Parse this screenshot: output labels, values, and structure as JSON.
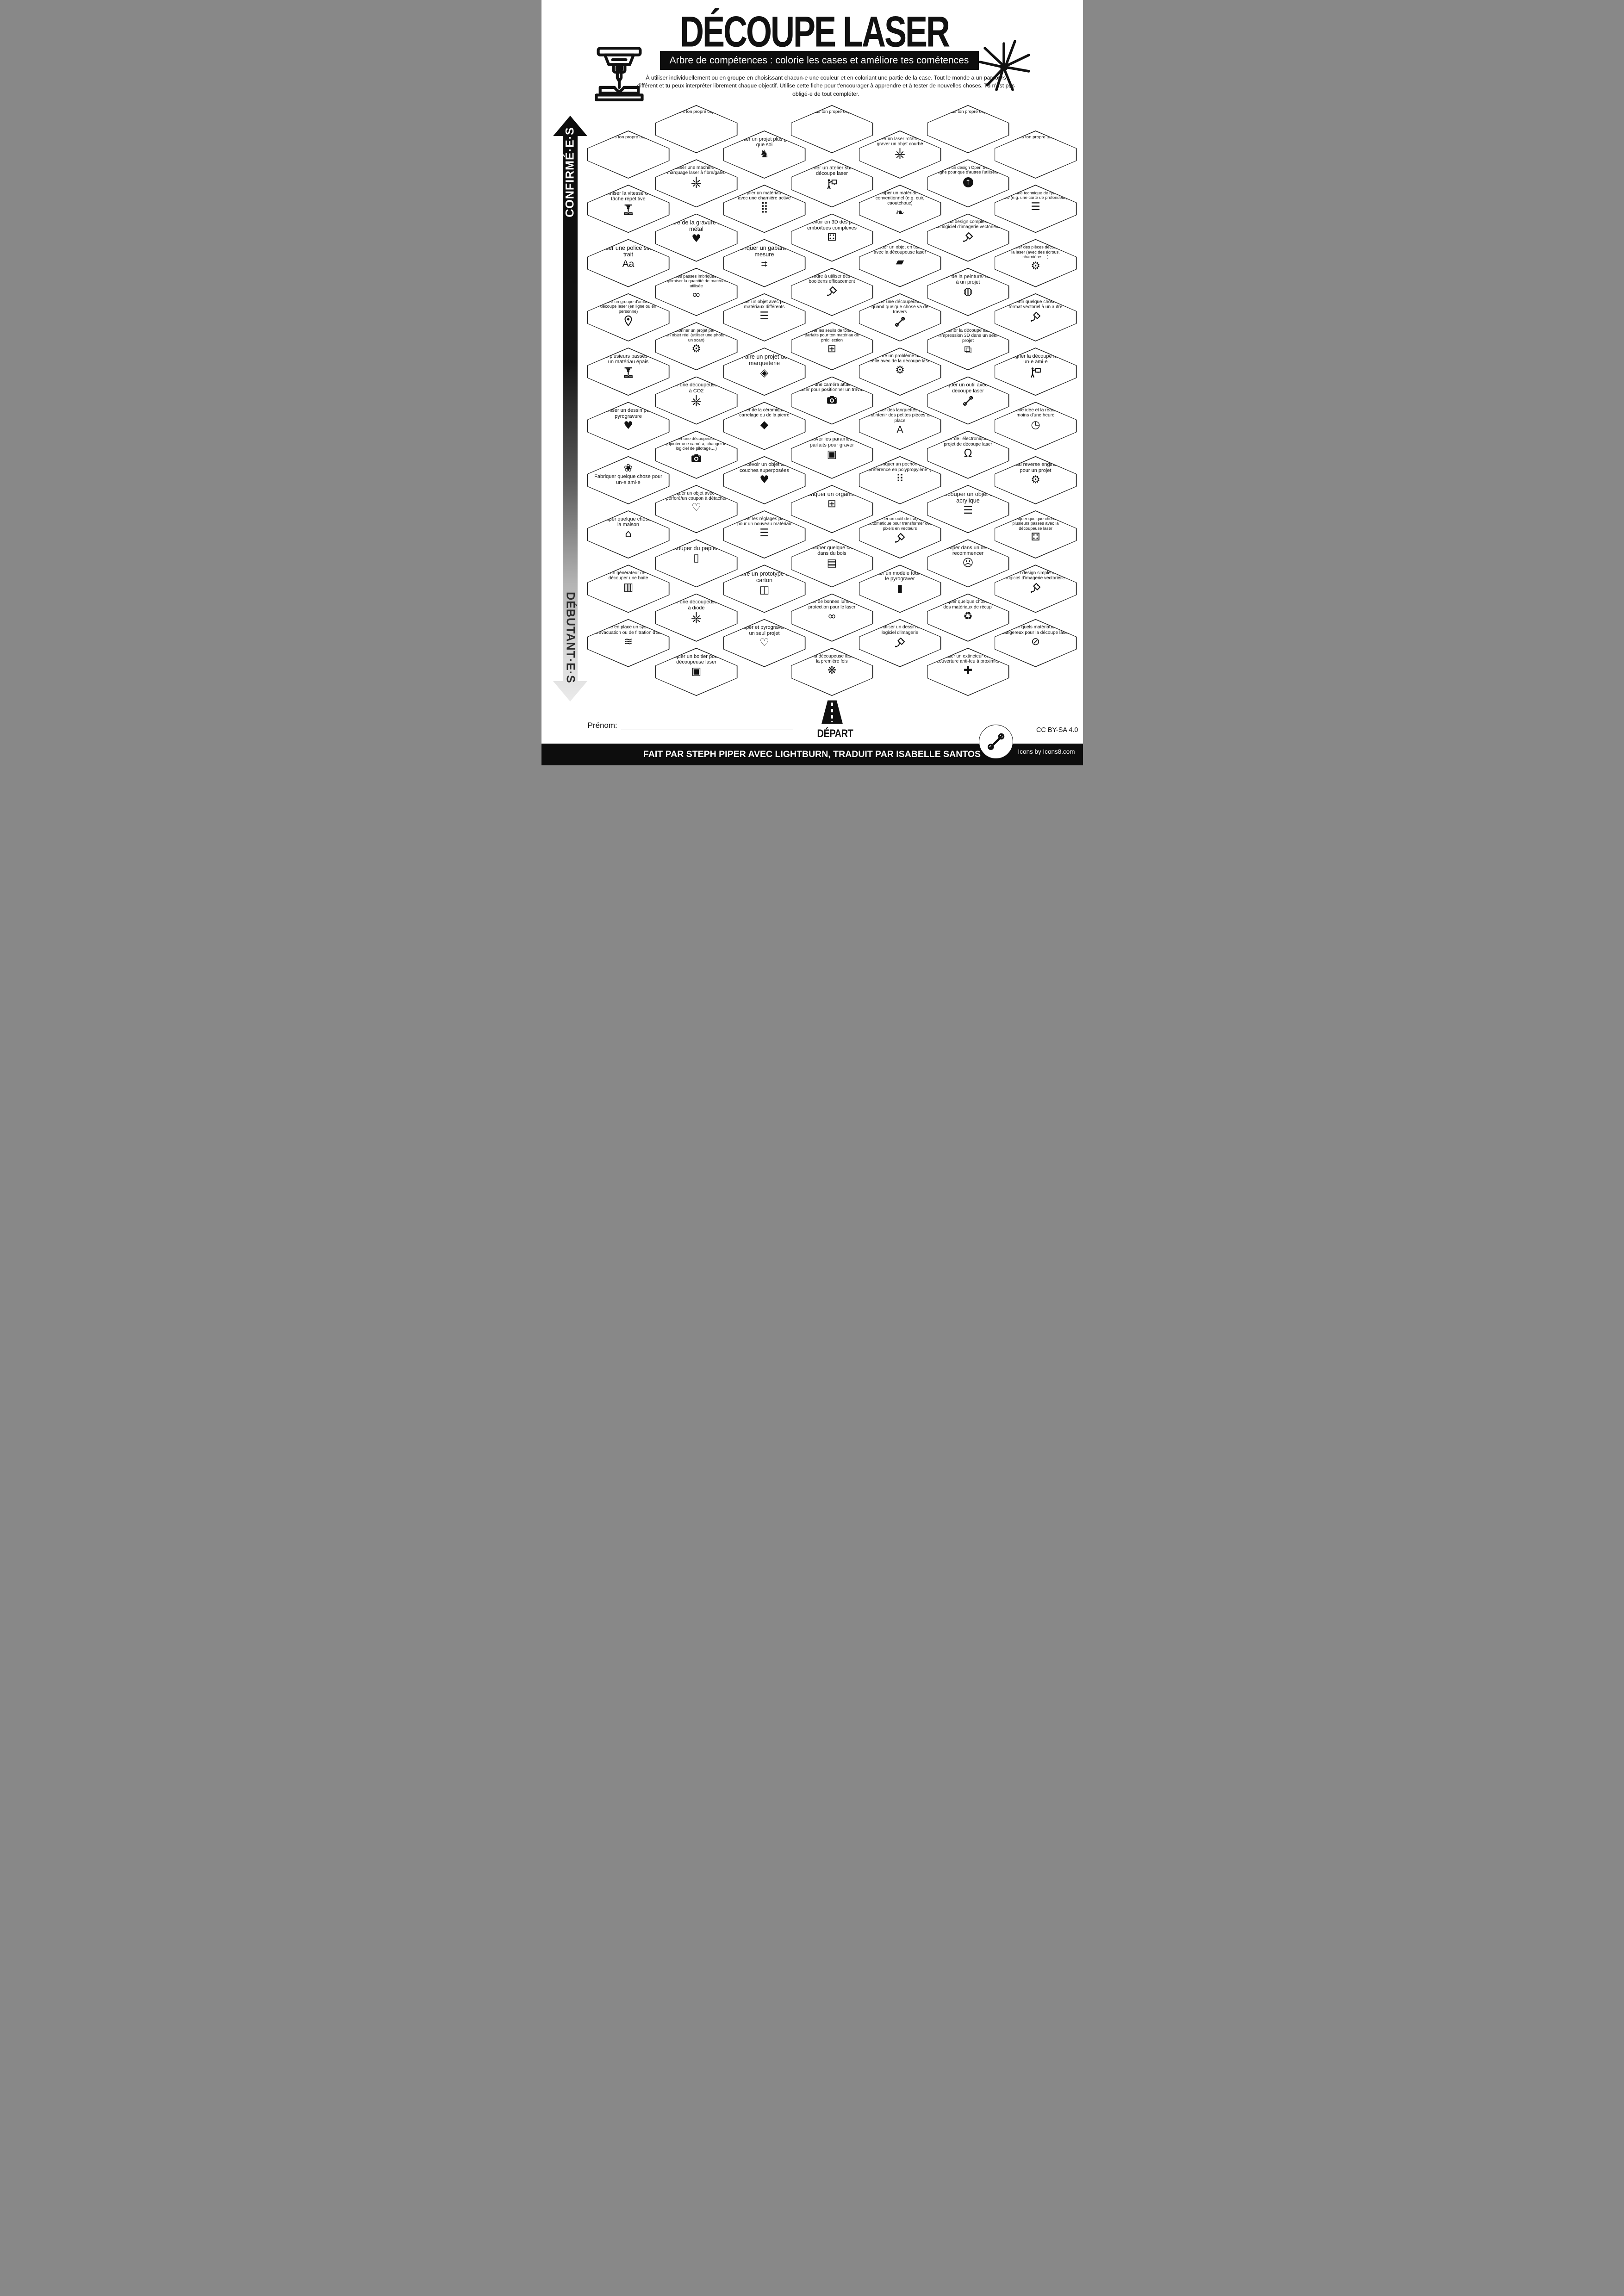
{
  "header": {
    "title": "DÉCOUPE LASER",
    "subtitle": "Arbre de compétences : colorie les cases et améliore tes cométences",
    "intro": "À utiliser individuellement ou en groupe en choisissant chacun·e une couleur et en coloriant une partie de la case. Tout le monde a un parcours différent et tu peux interpréter librement chaque objectif. Utilise cette fiche pour t'encourager à apprendre et à tester de nouvelles choses. Tu n'est pas obligé·e de tout compléter."
  },
  "axis": {
    "top": "CONFIRMÉ·E·S",
    "bottom": "DÉBUTANT·E·S"
  },
  "footer": {
    "start": "DÉPART",
    "name_label": "Prénom:",
    "credit": "FAIT PAR STEPH PIPER AVEC LIGHTBURN, TRADUIT PAR ISABELLE SANTOS",
    "license": "CC BY-SA 4.0",
    "icons_credit": "Icons by Icons8.com"
  },
  "columns": [
    {
      "items": [
        {
          "label": "(choisis ton propre objectif)",
          "icon": ""
        },
        {
          "label": "Optimiser la vitesse d'une tâche répétitive",
          "icon": "laser-cutter-icon"
        },
        {
          "label": "Utiliser une police simple trait",
          "icon": "font-sample-icon"
        },
        {
          "label": "Rejoindre un groupe d'amateurs de découpe laser (en ligne ou en personne)",
          "icon": "map-pin-icon"
        },
        {
          "label": "Faire plusieurs passes dans un matériau épais",
          "icon": "laser-cutter-icon"
        },
        {
          "label": "Optimiser un dessin pour la pyrogravure",
          "icon": "heart-laser-icon"
        },
        {
          "label": "Fabriquer quelque chose pour un·e ami·e",
          "icon": "gift-bow-icon",
          "icon_first": true
        },
        {
          "label": "Découper quelque chose pour la maison",
          "icon": "house-icon"
        },
        {
          "label": "Utiliser un générateur de boite et découper une boite",
          "icon": "box-generator-icon"
        },
        {
          "label": "Mettre en place un système d'évacuation ou de filtration d'air",
          "icon": "air-flow-icon"
        }
      ]
    },
    {
      "items": [
        {
          "label": "(choisis ton propre objectif)",
          "icon": ""
        },
        {
          "label": "Utiliser une machine de marquage laser à fibre/galvo",
          "icon": "laser-beam-icon"
        },
        {
          "label": "Faire de la gravure sur métal",
          "icon": "heart-laser-icon"
        },
        {
          "label": "Faire des passes imbriquées pour optimiser la quantité de matériau utilisée",
          "icon": "nested-belt-icon"
        },
        {
          "label": "Dimensionner un projet par rapport à un objet réel (utiliser une photo ou un scan)",
          "icon": "gear-hand-icon"
        },
        {
          "label": "Utiliser une découpeuse laser à CO2",
          "icon": "laser-beam-icon"
        },
        {
          "label": "Modifier une découpeuse laser (ajouter une caméra, changer le logiciel de pilotage,...)",
          "icon": "camera-icon"
        },
        {
          "label": "Fabriquer un objet avec un pli perforé/un coupon à détacher",
          "icon": "perforated-heart-icon"
        },
        {
          "label": "Découper du papier ou",
          "icon": "paper-icon"
        },
        {
          "label": "Utiliser une découpeuse laser à diode",
          "icon": "laser-beam-icon"
        },
        {
          "label": "Fabriquer un boitier pour une découpeuse laser",
          "icon": "laser-enclosure-icon"
        }
      ]
    },
    {
      "items": [
        {
          "label": "Réaliser un projet plus grand que soi",
          "icon": "elephant-icon"
        },
        {
          "label": "Faire plier un matériau rigide avec une charnière active",
          "icon": "living-hinge-icon"
        },
        {
          "label": "Fabriquer un gabarit sur mesure",
          "icon": "jig-frame-icon"
        },
        {
          "label": "Fabriquer un objet avec plusieurs matériaux différents",
          "icon": "layers-icon"
        },
        {
          "label": "Faire un projet de marqueterie",
          "icon": "marquetry-icon"
        },
        {
          "label": "Graver de la céramique, du carrelage ou de la pierre",
          "icon": "stone-icon"
        },
        {
          "label": "Concevoir un objet avec couches superposées",
          "icon": "layered-heart-icon"
        },
        {
          "label": "Trouver les réglages parfaits pour un nouveau matériau",
          "icon": "layers-icon"
        },
        {
          "label": "Faire un prototype en carton",
          "icon": "cardboard-icon"
        },
        {
          "label": "Découper et pyrograver dans un seul projet",
          "icon": "heart-outline-laser-icon"
        }
      ]
    },
    {
      "items": [
        {
          "label": "(choisis ton propre objectif)",
          "icon": ""
        },
        {
          "label": "Mener un atelier sur la découpe laser",
          "icon": "teacher-icon"
        },
        {
          "label": "Concevoir en 3D des pièces emboîtées complexes",
          "icon": "interlocking-parts-icon"
        },
        {
          "label": "Apprendre à utiliser des outils booléens efficacement",
          "icon": "pen-tool-icon"
        },
        {
          "label": "Trouver les seuils de tolérance parfaits pour ton matériau de prédilection",
          "icon": "tolerance-cube-icon"
        },
        {
          "label": "Utiliser une caméra attachée au laser pour positionner un travail",
          "icon": "camera-icon"
        },
        {
          "label": "Trouver les paramètres parfaits pour graver",
          "icon": "engraved-portrait-icon"
        },
        {
          "label": "Fabriquer un organiseur",
          "icon": "organizer-icon"
        },
        {
          "label": "Découper quelque chose dans du bois",
          "icon": "wood-icon"
        },
        {
          "label": "Acheter de bonnes lunettes de protection pour le laser",
          "icon": "safety-goggles-icon"
        },
        {
          "label": "Utiliser la découpeuse laser pour la première fois",
          "icon": "party-popper-icon"
        }
      ]
    },
    {
      "items": [
        {
          "label": "Utiliser un laser rotatif pour graver un objet courbé",
          "icon": "laser-beam-icon"
        },
        {
          "label": "Découper un matériau non-conventionnel (e.g. cuir, caoutchouc)",
          "icon": "leaf-icon"
        },
        {
          "label": "Fabriquer un objet en tissu/cuir avec la découpeuse laser",
          "icon": "fabric-icon"
        },
        {
          "label": "Réparer une découpeuse laser quand quelque chose va de travers",
          "icon": "repair-tools-icon"
        },
        {
          "label": "Résoudre un problème de la vie réelle avec de la découpe laser",
          "icon": "gear-hand-icon"
        },
        {
          "label": "Utiliser des languettes pour maintenir des petites pièces en place",
          "icon": "holding-tabs-icon"
        },
        {
          "label": "Fabriquer un pochoir (de préférence en polypropylène !)",
          "icon": "stencil-icon"
        },
        {
          "label": "Utiliser un outil de traçage automatique pour transformer des pixels en vecteurs",
          "icon": "pen-tool-icon"
        },
        {
          "label": "Acheter un modèle tout fait et le pyrograver",
          "icon": "cutting-board-icon"
        },
        {
          "label": "Personnaliser un dessin avec un logiciel d'imagerie",
          "icon": "pen-tool-icon"
        }
      ]
    },
    {
      "items": [
        {
          "label": "(choisis ton propre objectif)",
          "icon": ""
        },
        {
          "label": "Partager un design Open Source en ligne pour que d'autres l'utilisent",
          "icon": "upload-icon"
        },
        {
          "label": "Créer un design complexe avec un logiciel d'imagerie vectorielle",
          "icon": "pen-tool-icon"
        },
        {
          "label": "Ajouter de la peinture/ couleur à un projet",
          "icon": "paint-icon"
        },
        {
          "label": "Combiner la découpe laser et l'impression 3D dans un seul projet",
          "icon": "laser-3dprint-icon"
        },
        {
          "label": "Fabriquer un outil avec de la découpe laser",
          "icon": "repair-tools-icon"
        },
        {
          "label": "Ajouter de l'électronique à un projet de découpe laser",
          "icon": "led-icon"
        },
        {
          "label": "Découper un objet en acrylique",
          "icon": "layers-icon"
        },
        {
          "label": "Se tromper dans un design et recommencer",
          "icon": "facepalm-icon"
        },
        {
          "label": "Fabriquer quelque chose avec des matériaux de récup'",
          "icon": "recycle-icon"
        },
        {
          "label": "Installer un extincteur et une couverture anti-feu à proximité",
          "icon": "extinguisher-icon"
        }
      ]
    },
    {
      "items": [
        {
          "label": "(choisis ton propre objectif)",
          "icon": ""
        },
        {
          "label": "Utiliser une technique de gravure en 3D (e.g. une carte de profondeur)",
          "icon": "depth-layers-icon"
        },
        {
          "label": "Assembler des pièces découpées à la laser (avec des écrous, charnières,...)",
          "icon": "nut-bolt-icon"
        },
        {
          "label": "Convertir quelque chose d'un format vectoriel à un autre",
          "icon": "pen-tool-icon"
        },
        {
          "label": "Enseigner la découpe laser à un·e ami·e",
          "icon": "teacher-icon"
        },
        {
          "label": "Avoir une idée et la réaliser en moins d'une heure",
          "icon": "clock-icon"
        },
        {
          "label": "Faire du reverse engineering pour un projet",
          "icon": "gear-hand-icon"
        },
        {
          "label": "Fabriquer quelque chose en plusieurs passes avec la découpeuse laser",
          "icon": "interlocking-parts-icon"
        },
        {
          "label": "Créer un design simple avec un logiciel d'imagerie vectorielle",
          "icon": "pen-tool-icon"
        },
        {
          "label": "Savoir quels matériaux sont dangereux pour la découpe laser",
          "icon": "banned-materials-icon"
        }
      ]
    }
  ],
  "icon_map": {
    "laser-beam-icon": {
      "t": "svg",
      "ref": "sym-beam"
    },
    "laser-cutter-icon": {
      "t": "svg",
      "ref": "sym-cutter"
    },
    "font-sample-icon": {
      "t": "text",
      "ch": "Aa"
    },
    "map-pin-icon": {
      "t": "svg",
      "ref": "sym-pin"
    },
    "heart-laser-icon": {
      "t": "glyph",
      "ch": "♥"
    },
    "heart-outline-laser-icon": {
      "t": "glyph",
      "ch": "♡"
    },
    "gift-bow-icon": {
      "t": "glyph",
      "ch": "❀"
    },
    "house-icon": {
      "t": "glyph",
      "ch": "⌂"
    },
    "box-generator-icon": {
      "t": "glyph",
      "ch": "▥"
    },
    "air-flow-icon": {
      "t": "glyph",
      "ch": "≋"
    },
    "nested-belt-icon": {
      "t": "glyph",
      "ch": "∞"
    },
    "gear-hand-icon": {
      "t": "glyph",
      "ch": "⚙"
    },
    "camera-icon": {
      "t": "svg",
      "ref": "sym-camera"
    },
    "perforated-heart-icon": {
      "t": "glyph",
      "ch": "♡"
    },
    "paper-icon": {
      "t": "glyph",
      "ch": "▯"
    },
    "laser-enclosure-icon": {
      "t": "glyph",
      "ch": "▣"
    },
    "elephant-icon": {
      "t": "glyph",
      "ch": "♞"
    },
    "living-hinge-icon": {
      "t": "glyph",
      "ch": "⣿"
    },
    "jig-frame-icon": {
      "t": "glyph",
      "ch": "⌗"
    },
    "layers-icon": {
      "t": "glyph",
      "ch": "☰"
    },
    "marquetry-icon": {
      "t": "glyph",
      "ch": "◈"
    },
    "stone-icon": {
      "t": "glyph",
      "ch": "◆"
    },
    "layered-heart-icon": {
      "t": "glyph",
      "ch": "♥"
    },
    "cardboard-icon": {
      "t": "glyph",
      "ch": "◫"
    },
    "teacher-icon": {
      "t": "svg",
      "ref": "sym-teacher"
    },
    "interlocking-parts-icon": {
      "t": "glyph",
      "ch": "⚃"
    },
    "pen-tool-icon": {
      "t": "svg",
      "ref": "sym-pen"
    },
    "tolerance-cube-icon": {
      "t": "glyph",
      "ch": "⊞"
    },
    "engraved-portrait-icon": {
      "t": "glyph",
      "ch": "▣"
    },
    "organizer-icon": {
      "t": "glyph",
      "ch": "⊞"
    },
    "wood-icon": {
      "t": "glyph",
      "ch": "▤"
    },
    "safety-goggles-icon": {
      "t": "glyph",
      "ch": "∞"
    },
    "party-popper-icon": {
      "t": "glyph",
      "ch": "❋"
    },
    "leaf-icon": {
      "t": "glyph",
      "ch": "❧"
    },
    "fabric-icon": {
      "t": "glyph",
      "ch": "▰"
    },
    "repair-tools-icon": {
      "t": "svg",
      "ref": "sym-tools"
    },
    "holding-tabs-icon": {
      "t": "text",
      "ch": "A"
    },
    "stencil-icon": {
      "t": "glyph",
      "ch": "⠿"
    },
    "cutting-board-icon": {
      "t": "glyph",
      "ch": "▮"
    },
    "upload-icon": {
      "t": "circle",
      "ch": "↑"
    },
    "paint-icon": {
      "t": "glyph",
      "ch": "◍"
    },
    "laser-3dprint-icon": {
      "t": "glyph",
      "ch": "⧉"
    },
    "led-icon": {
      "t": "glyph",
      "ch": "Ω"
    },
    "facepalm-icon": {
      "t": "glyph",
      "ch": "☹"
    },
    "recycle-icon": {
      "t": "glyph",
      "ch": "♻"
    },
    "extinguisher-icon": {
      "t": "glyph",
      "ch": "✚"
    },
    "nut-bolt-icon": {
      "t": "glyph",
      "ch": "⚙"
    },
    "clock-icon": {
      "t": "glyph",
      "ch": "◷"
    },
    "depth-layers-icon": {
      "t": "glyph",
      "ch": "☰"
    },
    "banned-materials-icon": {
      "t": "glyph",
      "ch": "⊘"
    }
  }
}
